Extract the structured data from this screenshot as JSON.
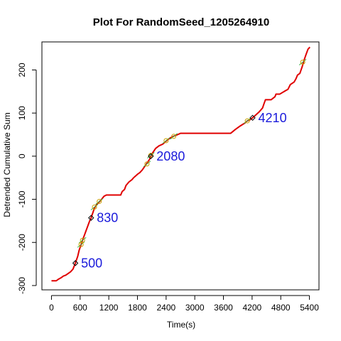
{
  "chart_data": {
    "type": "line",
    "title": "Plot For RandomSeed_1205264910",
    "xlabel": "Time(s)",
    "ylabel": "Detrended Cumulative Sum",
    "xlim": [
      -200,
      5600
    ],
    "ylim": [
      -310,
      265
    ],
    "x_ticks": [
      0,
      600,
      1200,
      1800,
      2400,
      3000,
      3600,
      4200,
      4800,
      5400
    ],
    "y_ticks": [
      -300,
      -200,
      -100,
      0,
      100,
      200
    ],
    "grid": false,
    "series": [
      {
        "color": "#e00000",
        "points": [
          [
            0,
            -289
          ],
          [
            100,
            -289
          ],
          [
            150,
            -285
          ],
          [
            200,
            -282
          ],
          [
            250,
            -278
          ],
          [
            300,
            -276
          ],
          [
            350,
            -272
          ],
          [
            400,
            -268
          ],
          [
            450,
            -262
          ],
          [
            500,
            -248
          ],
          [
            550,
            -232
          ],
          [
            580,
            -218
          ],
          [
            620,
            -205
          ],
          [
            650,
            -195
          ],
          [
            700,
            -180
          ],
          [
            750,
            -165
          ],
          [
            800,
            -150
          ],
          [
            830,
            -143
          ],
          [
            870,
            -130
          ],
          [
            900,
            -120
          ],
          [
            950,
            -112
          ],
          [
            1000,
            -106
          ],
          [
            1050,
            -100
          ],
          [
            1100,
            -93
          ],
          [
            1150,
            -90
          ],
          [
            1200,
            -90
          ],
          [
            1300,
            -90
          ],
          [
            1450,
            -90
          ],
          [
            1480,
            -82
          ],
          [
            1530,
            -77
          ],
          [
            1560,
            -68
          ],
          [
            1620,
            -60
          ],
          [
            1680,
            -55
          ],
          [
            1720,
            -50
          ],
          [
            1760,
            -46
          ],
          [
            1800,
            -42
          ],
          [
            1850,
            -38
          ],
          [
            1900,
            -32
          ],
          [
            1950,
            -24
          ],
          [
            2000,
            -16
          ],
          [
            2050,
            -8
          ],
          [
            2080,
            0
          ],
          [
            2120,
            8
          ],
          [
            2180,
            18
          ],
          [
            2250,
            24
          ],
          [
            2330,
            28
          ],
          [
            2380,
            33
          ],
          [
            2420,
            37
          ],
          [
            2480,
            42
          ],
          [
            2550,
            46
          ],
          [
            2620,
            49
          ],
          [
            2700,
            53
          ],
          [
            3000,
            53
          ],
          [
            3500,
            53
          ],
          [
            3750,
            53
          ],
          [
            3850,
            62
          ],
          [
            3950,
            70
          ],
          [
            4050,
            77
          ],
          [
            4100,
            82
          ],
          [
            4150,
            84
          ],
          [
            4210,
            89
          ],
          [
            4280,
            96
          ],
          [
            4350,
            103
          ],
          [
            4420,
            112
          ],
          [
            4450,
            122
          ],
          [
            4480,
            131
          ],
          [
            4600,
            131
          ],
          [
            4680,
            138
          ],
          [
            4700,
            144
          ],
          [
            4780,
            144
          ],
          [
            4900,
            152
          ],
          [
            4950,
            155
          ],
          [
            5000,
            166
          ],
          [
            5080,
            172
          ],
          [
            5120,
            180
          ],
          [
            5150,
            188
          ],
          [
            5200,
            192
          ],
          [
            5250,
            208
          ],
          [
            5280,
            220
          ],
          [
            5330,
            236
          ],
          [
            5370,
            248
          ],
          [
            5410,
            253
          ]
        ]
      }
    ],
    "circle_markers": [
      [
        620,
        -205
      ],
      [
        650,
        -195
      ],
      [
        900,
        -118
      ],
      [
        1000,
        -105
      ],
      [
        2000,
        -18
      ],
      [
        2080,
        2
      ],
      [
        2400,
        36
      ],
      [
        2560,
        46
      ],
      [
        4100,
        82
      ],
      [
        5260,
        218
      ]
    ],
    "diamond_markers": [
      [
        500,
        -248
      ],
      [
        830,
        -143
      ],
      [
        2080,
        0
      ],
      [
        4210,
        89
      ]
    ],
    "annotations": [
      {
        "x": 500,
        "y": -248,
        "text": "500"
      },
      {
        "x": 830,
        "y": -143,
        "text": "830"
      },
      {
        "x": 2080,
        "y": 0,
        "text": "2080"
      },
      {
        "x": 4210,
        "y": 89,
        "text": "4210"
      }
    ]
  }
}
